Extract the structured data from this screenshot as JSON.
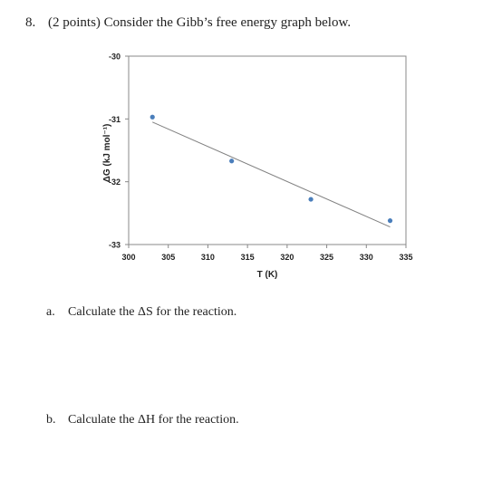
{
  "question": {
    "number": "8.",
    "text": "(2 points) Consider the Gibb’s free energy graph below."
  },
  "parts": [
    {
      "letter": "a.",
      "text": "Calculate the ΔS for the reaction."
    },
    {
      "letter": "b.",
      "text": "Calculate the ΔH for the reaction."
    }
  ],
  "chart_data": {
    "type": "scatter",
    "xlabel": "T (K)",
    "ylabel": "ΔG (kJ mol⁻¹)",
    "xlim": [
      300,
      335
    ],
    "ylim": [
      -33,
      -30
    ],
    "x_ticks": [
      300,
      305,
      310,
      315,
      320,
      325,
      330,
      335
    ],
    "y_ticks": [
      -30,
      -31,
      -32,
      -33
    ],
    "x_tick_labels": [
      "300",
      "305",
      "310",
      "315",
      "320",
      "325",
      "330",
      "335"
    ],
    "y_tick_labels": [
      "-30",
      "-31",
      "-32",
      "-33"
    ],
    "grid": false,
    "points": [
      {
        "x": 303,
        "y": -30.97
      },
      {
        "x": 313,
        "y": -31.67
      },
      {
        "x": 323,
        "y": -32.28
      },
      {
        "x": 333,
        "y": -32.62
      }
    ],
    "trendline": {
      "x": [
        303,
        333
      ],
      "y": [
        -31.05,
        -32.72
      ]
    },
    "marker_color": "#4a7ebb",
    "line_color": "#808080"
  }
}
